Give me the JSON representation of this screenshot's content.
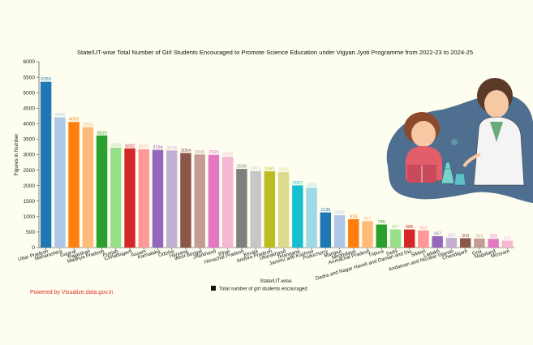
{
  "credit": "Powered by Visualize.data.gov.in",
  "chart_data": {
    "type": "bar",
    "title": "State/UT-wise Total Number of Girl Students Encouraged to Promote Science Education under Vigyan Jyoti Programme from 2022-23 to 2024-25",
    "xlabel": "State/UT-wise",
    "ylabel": "Figures in Number",
    "ylim": [
      0,
      6000
    ],
    "yticks": [
      0,
      500,
      1000,
      1500,
      2000,
      2500,
      3000,
      3500,
      4000,
      4500,
      5000,
      5500,
      6000
    ],
    "legend": "Total number of girl students encouraged",
    "legend_position": "bottom-center",
    "grid": false,
    "categories": [
      "Uttar Pradesh",
      "Maharashtra",
      "Gujarat",
      "Rajasthan",
      "Madhya Pradesh",
      "Punjab",
      "Chhattisgarh",
      "Assam",
      "Karnataka",
      "Odisha",
      "Haryana",
      "West Bengal",
      "Jharkhand",
      "Bihar",
      "Himachal Pradesh",
      "Kerala",
      "Andhra Pradesh",
      "Uttarakhand",
      "Telangana",
      "Jammu and Kashmir",
      "Puducherry",
      "Manipur",
      "Meghalaya",
      "Arunachal Pradesh",
      "Tripura",
      "Delhi",
      "Dadra and Nagar Haveli and Daman and Diu",
      "Sikkim",
      "Ladakh",
      "Andaman and Nicobar Islands",
      "Chandigarh",
      "Goa",
      "Nagaland",
      "Mizoram"
    ],
    "values": [
      5353,
      4206,
      4055,
      3890,
      3619,
      3224,
      3202,
      3171,
      3154,
      3136,
      3054,
      3006,
      2995,
      2933,
      2539,
      2471,
      2461,
      2435,
      2007,
      1934,
      1136,
      1043,
      916,
      857,
      745,
      587,
      586,
      553,
      367,
      315,
      303,
      291,
      283,
      224
    ],
    "colors": [
      "#1f77b4",
      "#aec7e8",
      "#ff7f0e",
      "#ffbb78",
      "#2ca02c",
      "#98df8a",
      "#d62728",
      "#ff9896",
      "#9467bd",
      "#c5b0d5",
      "#8c564b",
      "#c49c94",
      "#e377c2",
      "#f7b6d2",
      "#7f7f7f",
      "#c7c7c7",
      "#bcbd22",
      "#dbdb8d",
      "#17becf",
      "#9edae5",
      "#1f77b4",
      "#aec7e8",
      "#ff7f0e",
      "#ffbb78",
      "#2ca02c",
      "#98df8a",
      "#d62728",
      "#ff9896",
      "#9467bd",
      "#c5b0d5",
      "#8c564b",
      "#c49c94",
      "#e377c2",
      "#f7b6d2"
    ]
  }
}
